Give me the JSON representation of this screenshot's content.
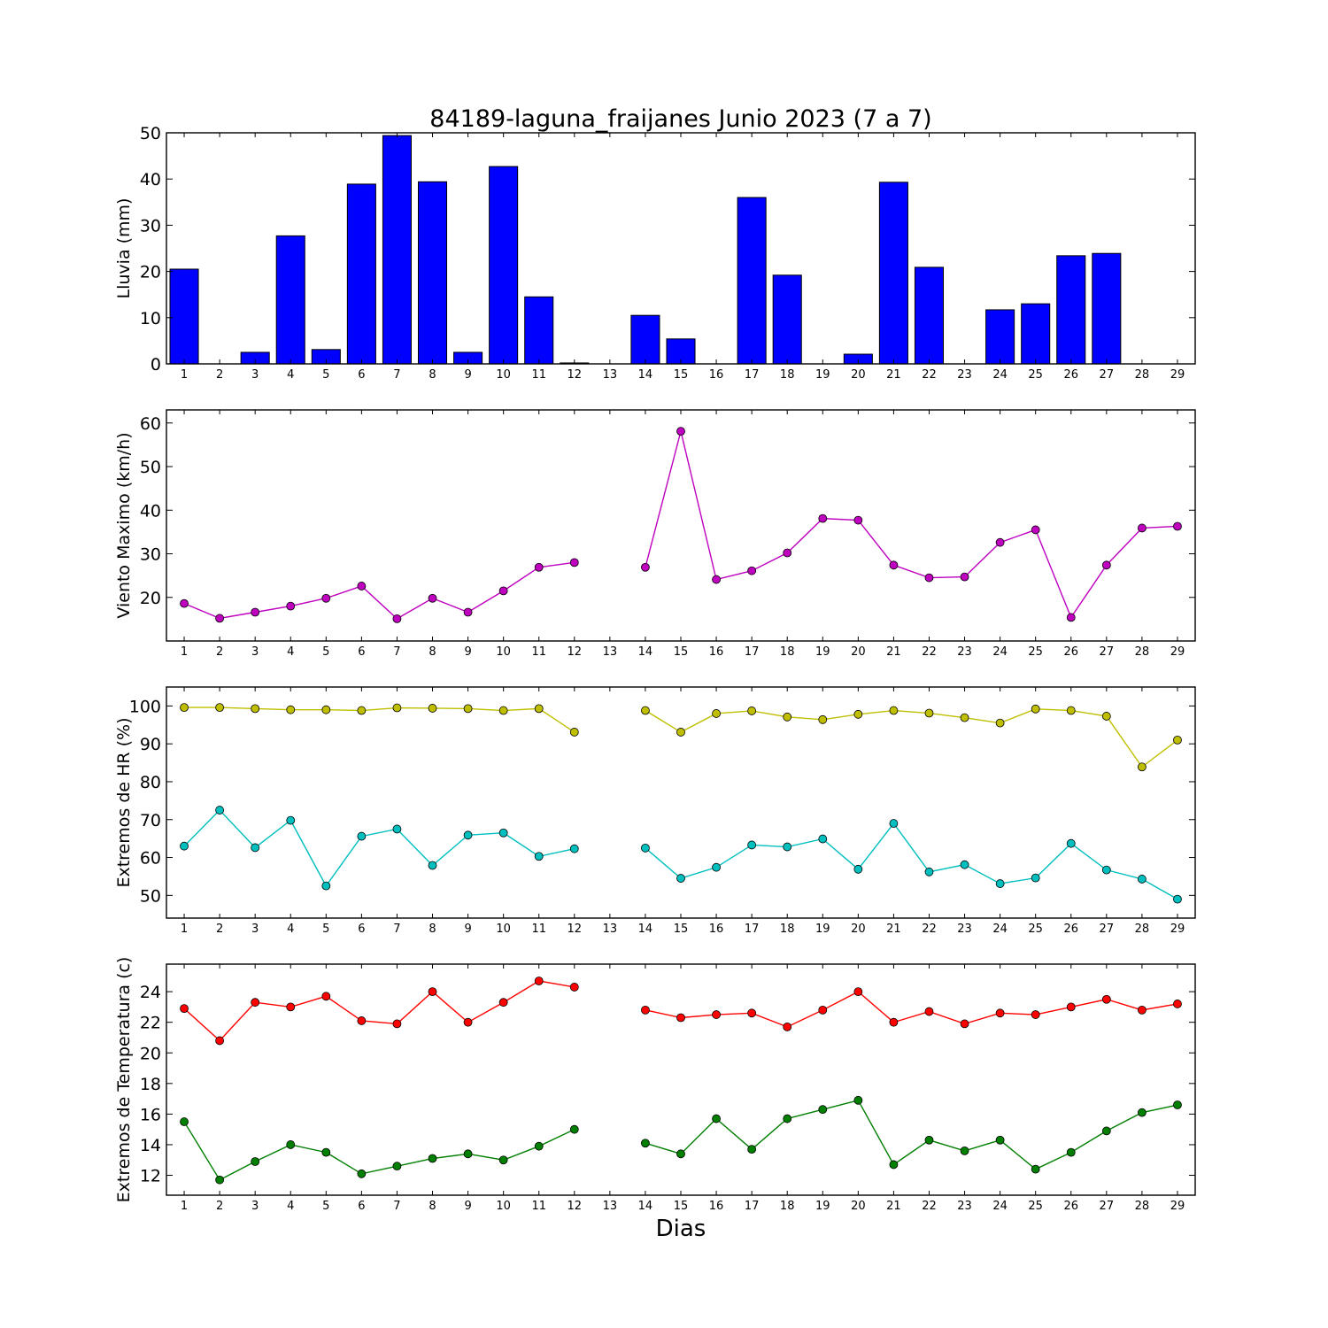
{
  "chart_data": [
    {
      "type": "bar",
      "title": "84189-laguna_fraijanes Junio 2023  (7 a 7)",
      "ylabel": "Lluvia (mm)",
      "ylim": [
        0,
        50
      ],
      "yticks": [
        0,
        10,
        20,
        30,
        40,
        50
      ],
      "categories": [
        1,
        2,
        3,
        4,
        5,
        6,
        7,
        8,
        9,
        10,
        11,
        12,
        13,
        14,
        15,
        16,
        17,
        18,
        19,
        20,
        21,
        22,
        23,
        24,
        25,
        26,
        27,
        28,
        29
      ],
      "color": "#0000ff",
      "values": [
        20.5,
        0,
        2.5,
        27.7,
        3.1,
        38.9,
        49.4,
        39.4,
        2.5,
        42.7,
        14.5,
        0.2,
        null,
        10.5,
        5.4,
        0,
        36.0,
        19.2,
        0,
        2.1,
        39.3,
        20.9,
        0,
        11.7,
        13.0,
        23.4,
        23.9,
        0,
        null
      ]
    },
    {
      "type": "line",
      "ylabel": "Viento Maximo (km/h)",
      "ylim": [
        10,
        63
      ],
      "yticks": [
        20,
        30,
        40,
        50,
        60
      ],
      "x": [
        1,
        2,
        3,
        4,
        5,
        6,
        7,
        8,
        9,
        10,
        11,
        12,
        13,
        14,
        15,
        16,
        17,
        18,
        19,
        20,
        21,
        22,
        23,
        24,
        25,
        26,
        27,
        28,
        29
      ],
      "series": [
        {
          "color": "#bf00bf",
          "values": [
            18.6,
            15.2,
            16.6,
            18.0,
            19.8,
            22.6,
            15.1,
            19.8,
            16.6,
            21.5,
            26.9,
            28.0,
            null,
            26.9,
            58.1,
            24.1,
            26.1,
            30.2,
            38.1,
            37.7,
            27.4,
            24.5,
            24.7,
            32.6,
            35.5,
            15.4,
            27.4,
            35.9,
            36.3
          ]
        }
      ]
    },
    {
      "type": "line",
      "ylabel": "Extremos de HR (%)",
      "ylim": [
        44,
        105
      ],
      "yticks": [
        50,
        60,
        70,
        80,
        90,
        100
      ],
      "x": [
        1,
        2,
        3,
        4,
        5,
        6,
        7,
        8,
        9,
        10,
        11,
        12,
        13,
        14,
        15,
        16,
        17,
        18,
        19,
        20,
        21,
        22,
        23,
        24,
        25,
        26,
        27,
        28,
        29
      ],
      "series": [
        {
          "color": "#bfbf00",
          "values": [
            99.6,
            99.6,
            99.3,
            99.0,
            99.0,
            98.8,
            99.5,
            99.4,
            99.3,
            98.8,
            99.3,
            93.1,
            null,
            98.8,
            93.1,
            98.0,
            98.7,
            97.1,
            96.4,
            97.8,
            98.8,
            98.1,
            96.9,
            95.5,
            99.2,
            98.8,
            97.3,
            83.9,
            91.0
          ]
        },
        {
          "color": "#00bfbf",
          "values": [
            63.0,
            72.5,
            62.6,
            69.8,
            52.5,
            65.6,
            67.5,
            57.9,
            65.9,
            66.5,
            60.3,
            62.3,
            null,
            62.5,
            54.5,
            57.4,
            63.3,
            62.8,
            64.9,
            56.9,
            69.0,
            56.2,
            58.1,
            53.1,
            54.6,
            63.7,
            56.7,
            54.3,
            49.0
          ]
        }
      ]
    },
    {
      "type": "line",
      "ylabel": "Extremos de Temperatura (c)",
      "xlabel": "Dias",
      "ylim": [
        10.7,
        25.8
      ],
      "yticks": [
        12,
        14,
        16,
        18,
        20,
        22,
        24
      ],
      "x": [
        1,
        2,
        3,
        4,
        5,
        6,
        7,
        8,
        9,
        10,
        11,
        12,
        13,
        14,
        15,
        16,
        17,
        18,
        19,
        20,
        21,
        22,
        23,
        24,
        25,
        26,
        27,
        28,
        29
      ],
      "series": [
        {
          "color": "#ff0000",
          "values": [
            22.9,
            20.8,
            23.3,
            23.0,
            23.7,
            22.1,
            21.9,
            24.0,
            22.0,
            23.3,
            24.7,
            24.3,
            null,
            22.8,
            22.3,
            22.5,
            22.6,
            21.7,
            22.8,
            24.0,
            22.0,
            22.7,
            21.9,
            22.6,
            22.5,
            23.0,
            23.5,
            22.8,
            23.2
          ]
        },
        {
          "color": "#007f00",
          "values": [
            15.5,
            11.7,
            12.9,
            14.0,
            13.5,
            12.1,
            12.6,
            13.1,
            13.4,
            13.0,
            13.9,
            15.0,
            null,
            14.1,
            13.4,
            15.7,
            13.7,
            15.7,
            16.3,
            16.9,
            12.7,
            14.3,
            13.6,
            14.3,
            12.4,
            13.5,
            14.9,
            16.1,
            16.6
          ]
        }
      ]
    }
  ]
}
